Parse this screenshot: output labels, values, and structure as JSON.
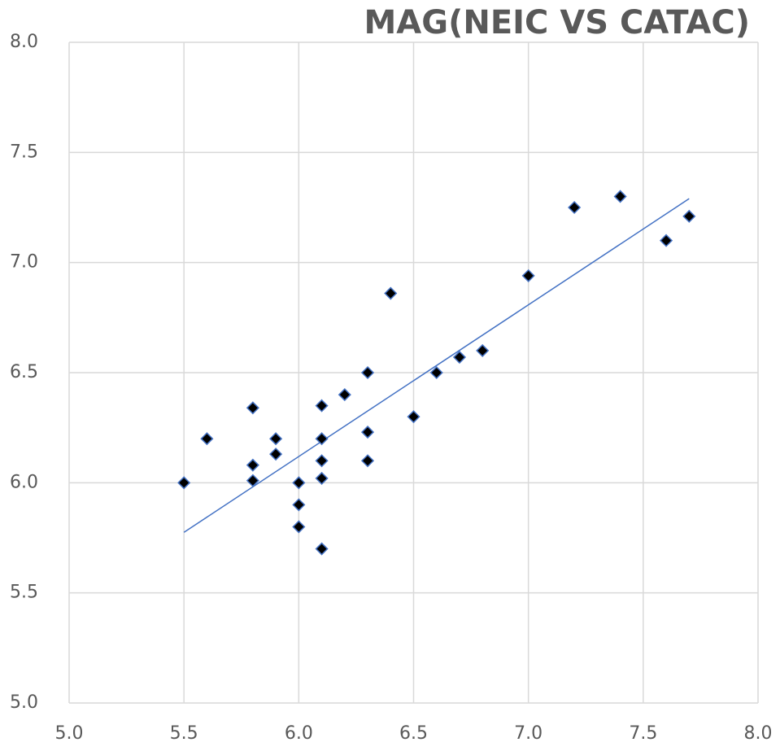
{
  "chart_data": {
    "type": "scatter",
    "title": "MAG(NEIC VS CATAC)",
    "x": [
      5.5,
      5.6,
      5.8,
      5.8,
      5.8,
      5.9,
      5.9,
      6.0,
      6.0,
      6.0,
      6.1,
      6.1,
      6.1,
      6.1,
      6.1,
      6.2,
      6.3,
      6.3,
      6.3,
      6.4,
      6.5,
      6.6,
      6.7,
      6.8,
      7.0,
      7.2,
      7.4,
      7.6,
      7.7
    ],
    "values": [
      6.0,
      6.2,
      6.34,
      6.08,
      6.01,
      6.2,
      6.13,
      6.0,
      5.9,
      5.8,
      6.35,
      6.2,
      6.1,
      6.02,
      5.7,
      6.4,
      6.5,
      6.23,
      6.1,
      6.86,
      6.3,
      6.5,
      6.57,
      6.6,
      6.94,
      7.25,
      7.3,
      7.1,
      7.21
    ],
    "color": "#000000",
    "marker_edge_color": "#4472c4",
    "trendline": {
      "color": "#4472c4",
      "x": [
        5.5,
        7.7
      ],
      "y": [
        5.775,
        7.29
      ]
    },
    "xlim": [
      5,
      8
    ],
    "ylim": [
      5,
      8
    ],
    "xticks": [
      {
        "value": 5,
        "label": "5.0"
      },
      {
        "value": 5.5,
        "label": "5.5"
      },
      {
        "value": 6,
        "label": "6.0"
      },
      {
        "value": 6.5,
        "label": "6.5"
      },
      {
        "value": 7,
        "label": "7.0"
      },
      {
        "value": 7.5,
        "label": "7.5"
      },
      {
        "value": 8,
        "label": "8.0"
      }
    ],
    "yticks": [
      {
        "value": 5,
        "label": "5.0"
      },
      {
        "value": 5.5,
        "label": "5.5"
      },
      {
        "value": 6,
        "label": "6.0"
      },
      {
        "value": 6.5,
        "label": "6.5"
      },
      {
        "value": 7,
        "label": "7.0"
      },
      {
        "value": 7.5,
        "label": "7.5"
      },
      {
        "value": 8,
        "label": "8.0"
      }
    ],
    "grid": true
  }
}
